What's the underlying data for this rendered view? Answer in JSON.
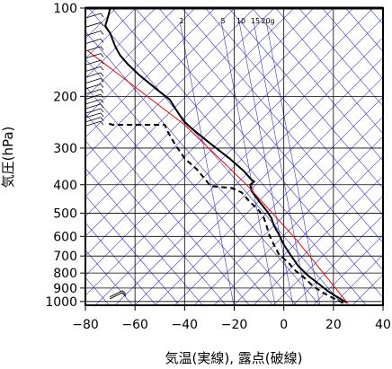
{
  "chart_data": {
    "type": "line",
    "title": "",
    "xlabel": "気温(実線), 露点(破線)",
    "ylabel": "気圧(hPa)",
    "xlim": [
      -80,
      40
    ],
    "ylim": [
      1030,
      100
    ],
    "y_scale": "log",
    "x_ticks": [
      -80,
      -60,
      -40,
      -20,
      0,
      20,
      40
    ],
    "x_tick_labels": [
      "−80",
      "−60",
      "−40",
      "−20",
      "0",
      "20",
      "40"
    ],
    "y_ticks": [
      100,
      200,
      300,
      400,
      500,
      600,
      700,
      800,
      900,
      1000
    ],
    "y_tick_labels": [
      "100",
      "200",
      "300",
      "400",
      "500",
      "600",
      "700",
      "800",
      "900",
      "1000"
    ],
    "isotherms_skewed": true,
    "mixing_ratio_labels": [
      "1",
      "5",
      "10",
      "15",
      "20g"
    ],
    "series": [
      {
        "style": "solid",
        "color": "#000000",
        "points": [
          [
            25.5,
            1010
          ],
          [
            22,
            970
          ],
          [
            18,
            925
          ],
          [
            14,
            870
          ],
          [
            10,
            820
          ],
          [
            6,
            760
          ],
          [
            3,
            700
          ],
          [
            0,
            640
          ],
          [
            -2,
            590
          ],
          [
            -4,
            550
          ],
          [
            -5,
            520
          ],
          [
            -7,
            490
          ],
          [
            -10,
            455
          ],
          [
            -13,
            420
          ],
          [
            -13.5,
            400
          ],
          [
            -12,
            390
          ],
          [
            -13,
            385
          ],
          [
            -16,
            360
          ],
          [
            -22,
            325
          ],
          [
            -30,
            288
          ],
          [
            -36,
            262
          ],
          [
            -40,
            245
          ],
          [
            -43,
            225
          ],
          [
            -46,
            205
          ],
          [
            -51,
            190
          ],
          [
            -58,
            170
          ],
          [
            -63,
            155
          ],
          [
            -66,
            145
          ],
          [
            -68,
            135
          ],
          [
            -70,
            122
          ],
          [
            -72,
            115
          ],
          [
            -71,
            108
          ],
          [
            -70,
            100
          ]
        ]
      },
      {
        "style": "dashed",
        "color": "#000000",
        "points": [
          [
            24,
            1010
          ],
          [
            20,
            975
          ],
          [
            16,
            935
          ],
          [
            12,
            890
          ],
          [
            9,
            840
          ],
          [
            5,
            790
          ],
          [
            2,
            740
          ],
          [
            -2,
            690
          ],
          [
            -4,
            640
          ],
          [
            -6,
            590
          ],
          [
            -7,
            550
          ],
          [
            -8,
            520
          ],
          [
            -10,
            490
          ],
          [
            -14,
            455
          ],
          [
            -17,
            425
          ],
          [
            -21,
            410
          ],
          [
            -29,
            405
          ],
          [
            -30,
            400
          ],
          [
            -31,
            390
          ],
          [
            -35,
            355
          ],
          [
            -40,
            325
          ],
          [
            -44,
            290
          ],
          [
            -47,
            262
          ],
          [
            -48,
            250
          ],
          [
            -69,
            250
          ],
          [
            -71,
            247
          ]
        ]
      },
      {
        "style": "solid",
        "color": "#ff0000",
        "points": [
          [
            26,
            1020
          ],
          [
            5,
            615
          ],
          [
            -15,
            400
          ],
          [
            -40,
            250
          ],
          [
            -79,
            140
          ]
        ]
      }
    ],
    "wind_barbs_upper_pressures": [
      108,
      116,
      124,
      132,
      140,
      148,
      156,
      164,
      172,
      180,
      188,
      196,
      204,
      212,
      220,
      228,
      236,
      244,
      252
    ],
    "wind_barbs_surface_pressures": [
      965,
      980
    ]
  }
}
